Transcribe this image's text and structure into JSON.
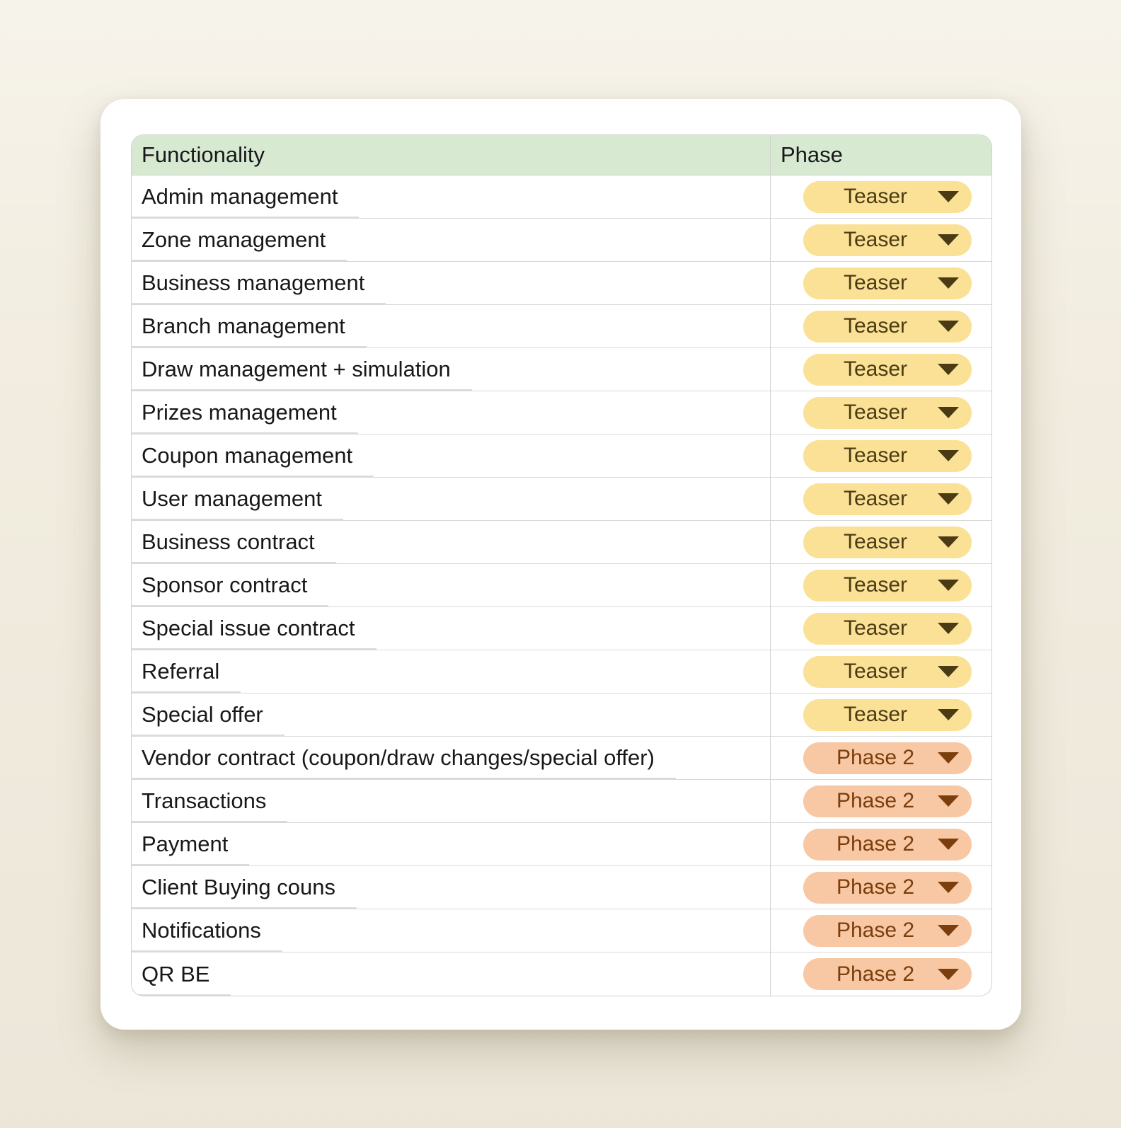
{
  "table": {
    "header": {
      "functionality": "Functionality",
      "phase": "Phase"
    },
    "rows": [
      {
        "functionality": "Admin management",
        "phase": "Teaser",
        "type": "teaser"
      },
      {
        "functionality": "Zone management",
        "phase": "Teaser",
        "type": "teaser"
      },
      {
        "functionality": "Business management",
        "phase": "Teaser",
        "type": "teaser"
      },
      {
        "functionality": "Branch management",
        "phase": "Teaser",
        "type": "teaser"
      },
      {
        "functionality": "Draw management + simulation",
        "phase": "Teaser",
        "type": "teaser"
      },
      {
        "functionality": "Prizes management",
        "phase": "Teaser",
        "type": "teaser"
      },
      {
        "functionality": "Coupon management",
        "phase": "Teaser",
        "type": "teaser"
      },
      {
        "functionality": "User management",
        "phase": "Teaser",
        "type": "teaser"
      },
      {
        "functionality": "Business contract",
        "phase": "Teaser",
        "type": "teaser"
      },
      {
        "functionality": "Sponsor contract",
        "phase": "Teaser",
        "type": "teaser"
      },
      {
        "functionality": "Special issue contract",
        "phase": "Teaser",
        "type": "teaser"
      },
      {
        "functionality": "Referral",
        "phase": "Teaser",
        "type": "teaser"
      },
      {
        "functionality": "Special offer",
        "phase": "Teaser",
        "type": "teaser"
      },
      {
        "functionality": "Vendor contract (coupon/draw changes/special offer)",
        "phase": "Phase 2",
        "type": "phase2"
      },
      {
        "functionality": "Transactions",
        "phase": "Phase 2",
        "type": "phase2"
      },
      {
        "functionality": "Payment",
        "phase": "Phase 2",
        "type": "phase2"
      },
      {
        "functionality": "Client Buying couns",
        "phase": "Phase 2",
        "type": "phase2"
      },
      {
        "functionality": "Notifications",
        "phase": "Phase 2",
        "type": "phase2"
      },
      {
        "functionality": "QR BE",
        "phase": "Phase 2",
        "type": "phase2"
      }
    ]
  },
  "icons": {
    "dropdown": "chevron-down-icon"
  },
  "colors": {
    "page_bg": "#F2EDE0",
    "card_bg": "#FFFFFF",
    "header_bg": "#D8E9D2",
    "text": "#17181A",
    "row_border": "#D7D9D7",
    "divider": "#CFD2CF",
    "underline": "#C2C4C2",
    "teaser_bg": "#FAE196",
    "teaser_text": "#4B3B14",
    "phase2_bg": "#F8C7A4",
    "phase2_text": "#7B3E0C"
  }
}
